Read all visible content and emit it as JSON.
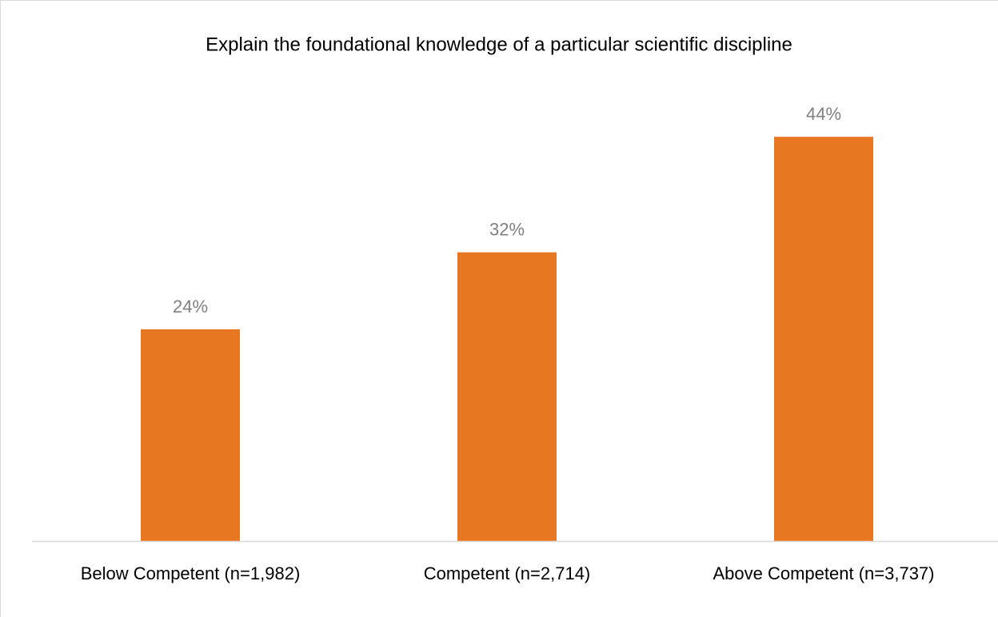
{
  "chart_data": {
    "type": "bar",
    "title": "Explain the foundational knowledge of a particular scientific discipline",
    "categories": [
      "Below Competent (n=1,982)",
      "Competent (n=2,714)",
      "Above Competent (n=3,737)"
    ],
    "values": [
      24,
      32,
      44
    ],
    "value_labels": [
      "24%",
      "32%",
      "44%"
    ],
    "color": "#e87722",
    "ylim": [
      2,
      48
    ]
  }
}
